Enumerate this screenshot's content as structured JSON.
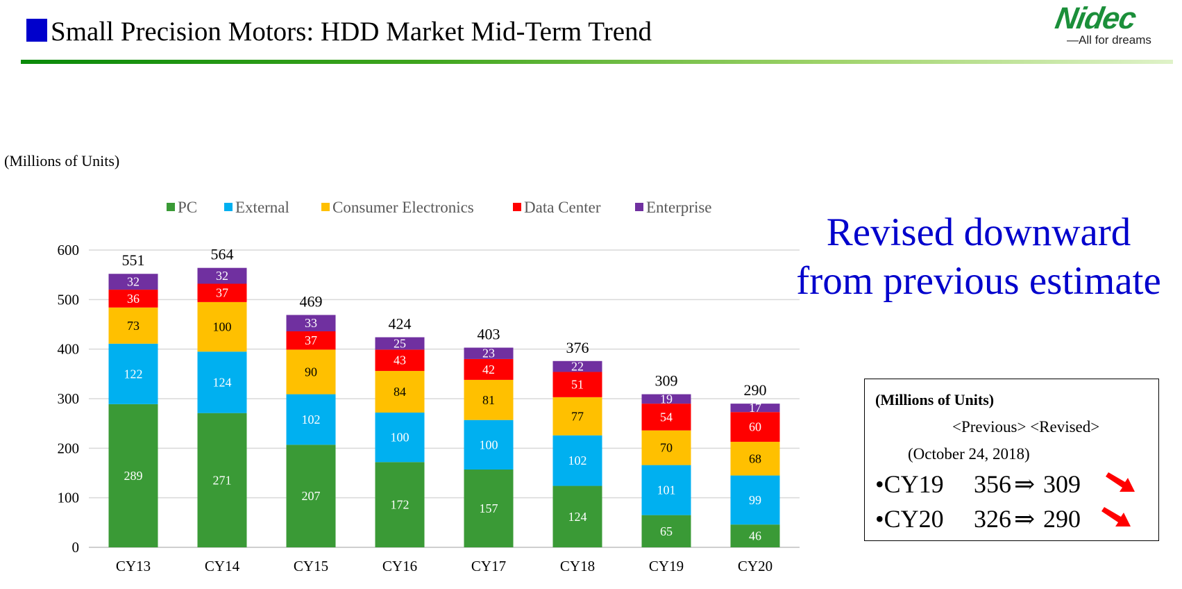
{
  "header": {
    "title": "Small Precision Motors: HDD Market Mid-Term Trend",
    "logo_text": "Nidec",
    "logo_tagline": "—All for dreams"
  },
  "units_label": "(Millions of Units)",
  "chart_data": {
    "type": "bar",
    "stacked": true,
    "categories": [
      "CY13",
      "CY14",
      "CY15",
      "CY16",
      "CY17",
      "CY18",
      "CY19",
      "CY20"
    ],
    "series": [
      {
        "name": "PC",
        "color": "#3a9a36",
        "label_color": "#ffffff",
        "values": [
          289,
          271,
          207,
          172,
          157,
          124,
          65,
          46
        ]
      },
      {
        "name": "External",
        "color": "#00b0f0",
        "label_color": "#ffffff",
        "values": [
          122,
          124,
          102,
          100,
          100,
          102,
          101,
          99
        ]
      },
      {
        "name": "Consumer Electronics",
        "color": "#ffc000",
        "label_color": "#000000",
        "values": [
          73,
          100,
          90,
          84,
          81,
          77,
          70,
          68
        ]
      },
      {
        "name": "Data Center",
        "color": "#ff0000",
        "label_color": "#ffffff",
        "values": [
          36,
          37,
          37,
          43,
          42,
          51,
          54,
          60
        ]
      },
      {
        "name": "Enterprise",
        "color": "#7030a0",
        "label_color": "#ffffff",
        "values": [
          32,
          32,
          33,
          25,
          23,
          22,
          19,
          17
        ]
      }
    ],
    "totals": [
      551,
      564,
      469,
      424,
      403,
      376,
      309,
      290
    ],
    "ylim": [
      0,
      600
    ],
    "yticks": [
      0,
      100,
      200,
      300,
      400,
      500,
      600
    ],
    "xlabel": "",
    "ylabel": "",
    "legend_position": "top",
    "grid": true
  },
  "callout": {
    "line1": "Revised downward",
    "line2": "from previous estimate",
    "color": "#0000cc"
  },
  "revision_box": {
    "units": "(Millions of Units)",
    "header": "<Previous> <Revised>",
    "date": "(October 24, 2018)",
    "rows": [
      {
        "year": "•CY19",
        "previous": "356",
        "arrow": "⇒",
        "revised": "309"
      },
      {
        "year": "•CY20",
        "previous": "326",
        "arrow": "⇒",
        "revised": "290"
      }
    ],
    "down_arrow_color": "#ff0000"
  }
}
